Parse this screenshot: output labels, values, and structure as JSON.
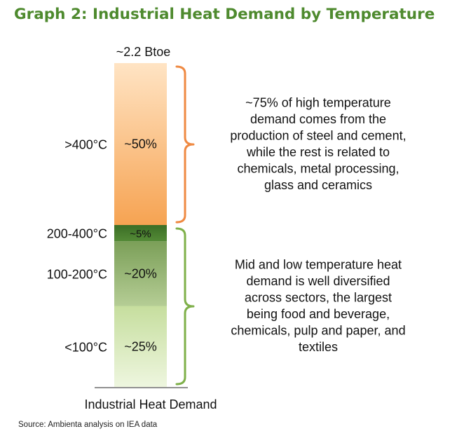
{
  "title": "Graph 2: Industrial Heat Demand by Temperature",
  "source": "Source: Ambienta analysis on IEA data",
  "colors": {
    "title": "#4e8a2e",
    "bracket_high": "#ef8a43",
    "bracket_low": "#7fb04a"
  },
  "chart_data": {
    "type": "bar",
    "stacked": true,
    "total_label": "~2.2 Btoe",
    "xlabel": "Industrial Heat Demand",
    "ylabel": "",
    "ylim": [
      0,
      100
    ],
    "segments": [
      {
        "category": "<100°C",
        "value": 25,
        "label": "~25%",
        "color_top": "#c6de9e",
        "color_bottom": "#eef6df"
      },
      {
        "category": "100-200°C",
        "value": 20,
        "label": "~20%",
        "color_top": "#7b9f58",
        "color_bottom": "#b5cd95"
      },
      {
        "category": "200-400°C",
        "value": 5,
        "label": "~5%",
        "color_top": "#3b6e25",
        "color_bottom": "#548a37"
      },
      {
        "category": ">400°C",
        "value": 50,
        "label": "~50%",
        "color_top": "#ffe4c4",
        "color_bottom": "#f6a352"
      }
    ],
    "annotations": [
      {
        "group": "high",
        "covers": [
          ">400°C"
        ],
        "lines": [
          "~75% of high temperature",
          "demand comes from the",
          "production of steel and cement,",
          "while the rest is related to",
          "chemicals, metal processing,",
          "glass and ceramics"
        ]
      },
      {
        "group": "low",
        "covers": [
          "200-400°C",
          "100-200°C",
          "<100°C"
        ],
        "lines": [
          "Mid and low temperature heat",
          "demand is well diversified",
          "across sectors, the largest",
          "being food and beverage,",
          "chemicals, pulp and paper, and",
          "textiles"
        ]
      }
    ]
  }
}
